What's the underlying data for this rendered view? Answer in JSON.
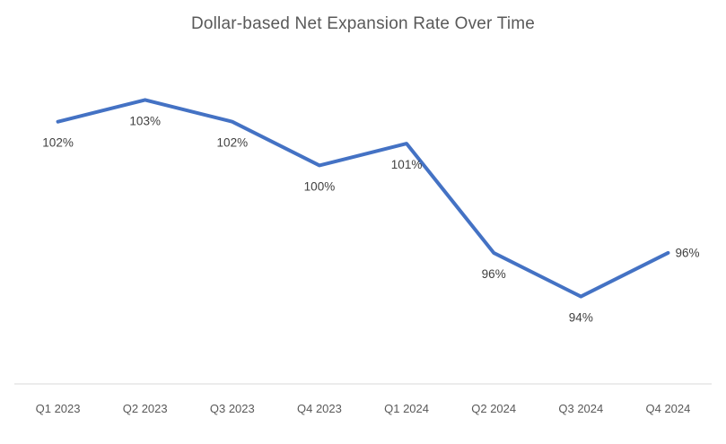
{
  "chart_data": {
    "type": "line",
    "title": "Dollar-based Net Expansion Rate Over Time",
    "categories": [
      "Q1 2023",
      "Q2 2023",
      "Q3 2023",
      "Q4 2023",
      "Q1 2024",
      "Q2 2024",
      "Q3 2024",
      "Q4 2024"
    ],
    "series": [
      {
        "name": "Dollar-based Net Expansion Rate",
        "values": [
          102,
          103,
          102,
          100,
          101,
          96,
          94,
          96
        ],
        "data_labels": [
          "102%",
          "103%",
          "102%",
          "100%",
          "101%",
          "96%",
          "94%",
          "96%"
        ],
        "label_positions": [
          "below",
          "below",
          "below",
          "below",
          "below",
          "below",
          "below",
          "right"
        ],
        "line_color": "#4472C4"
      }
    ],
    "xlabel": "",
    "ylabel": "",
    "ylim": [
      90,
      104
    ],
    "grid": false,
    "legend_position": "none",
    "axis_line_color": "#d9d9d9",
    "title_color": "#595959",
    "axis_label_color": "#595959",
    "data_label_color": "#404040"
  }
}
